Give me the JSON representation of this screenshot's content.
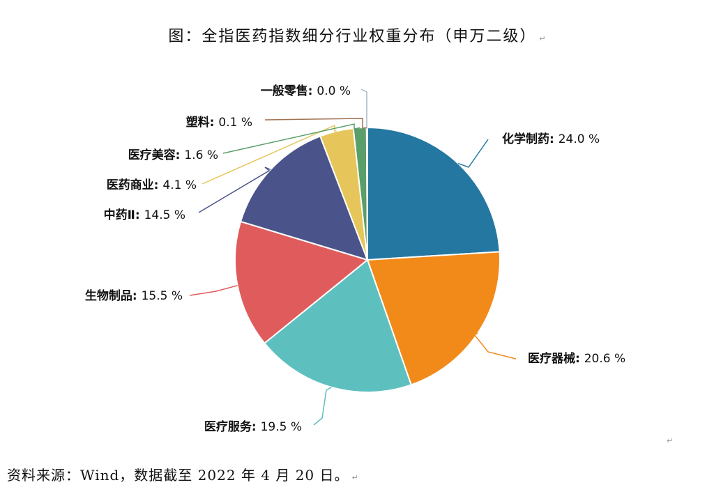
{
  "title": "图：全指医药指数细分行业权重分布（申万二级）",
  "paragraph_mark": "↵",
  "source": "资料来源：Wind，数据截至 2022 年 4 月 20 日。",
  "chart_data": {
    "type": "pie",
    "title": "图：全指医药指数细分行业权重分布（申万二级）",
    "unit": "%",
    "slices": [
      {
        "name": "化学制药",
        "value": 24.0,
        "display": "24.0 %",
        "color": "#2477a0"
      },
      {
        "name": "医疗器械",
        "value": 20.6,
        "display": "20.6 %",
        "color": "#f28a1a"
      },
      {
        "name": "医疗服务",
        "value": 19.5,
        "display": "19.5 %",
        "color": "#5ebfbf"
      },
      {
        "name": "生物制品",
        "value": 15.5,
        "display": "15.5 %",
        "color": "#e05c5c"
      },
      {
        "name": "中药Ⅱ",
        "value": 14.5,
        "display": "14.5 %",
        "color": "#4a548a"
      },
      {
        "name": "医药商业",
        "value": 4.1,
        "display": "4.1 %",
        "color": "#e6c65a"
      },
      {
        "name": "医疗美容",
        "value": 1.6,
        "display": "1.6 %",
        "color": "#5a9e6a"
      },
      {
        "name": "塑料",
        "value": 0.1,
        "display": "0.1 %",
        "color": "#a07050"
      },
      {
        "name": "一般零售",
        "value": 0.0,
        "display": "0.0 %",
        "color": "#a9b7c6"
      }
    ]
  }
}
